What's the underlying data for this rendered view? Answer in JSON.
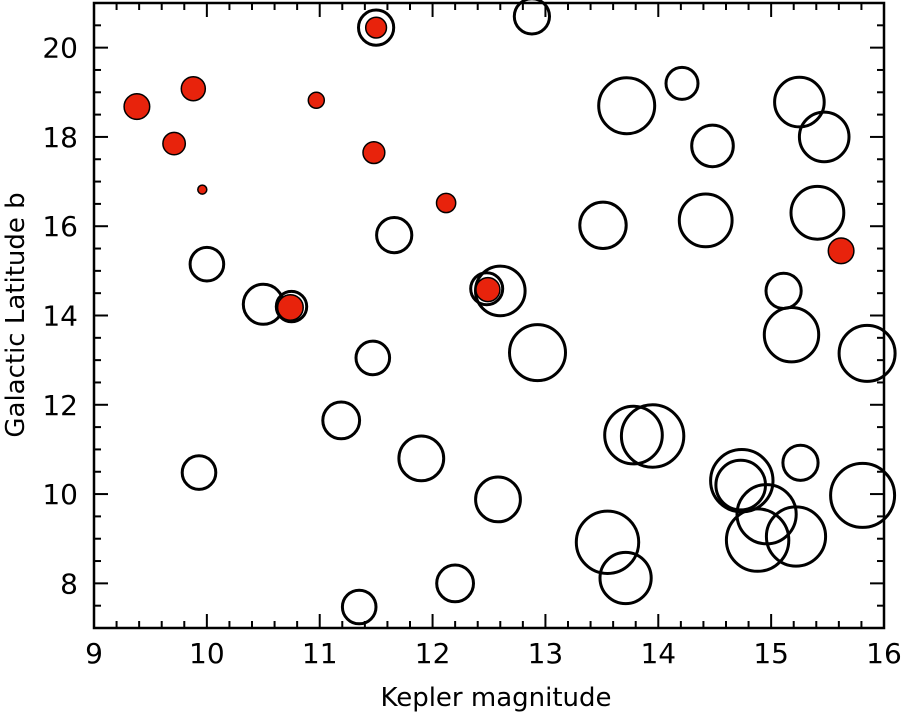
{
  "chart_data": {
    "type": "scatter",
    "xlabel": "Kepler magnitude",
    "ylabel": "Galactic Latitude b",
    "xlim": [
      9,
      16
    ],
    "ylim": [
      7,
      21
    ],
    "xticks": [
      9,
      10,
      11,
      12,
      13,
      14,
      15,
      16
    ],
    "yticks": [
      8,
      10,
      12,
      14,
      16,
      18,
      20
    ],
    "grid": false,
    "colors": {
      "filled": "#e8230c",
      "outline": "#000000"
    },
    "series": [
      {
        "marker": "open-circle",
        "points": [
          {
            "x": 11.5,
            "y": 20.45,
            "size": 1.1
          },
          {
            "x": 12.88,
            "y": 20.7,
            "size": 1.1
          },
          {
            "x": 14.21,
            "y": 19.2,
            "size": 1.0
          },
          {
            "x": 13.72,
            "y": 18.7,
            "size": 1.75
          },
          {
            "x": 15.25,
            "y": 18.78,
            "size": 1.55
          },
          {
            "x": 14.48,
            "y": 17.8,
            "size": 1.3
          },
          {
            "x": 15.47,
            "y": 18.0,
            "size": 1.55
          },
          {
            "x": 13.51,
            "y": 16.02,
            "size": 1.45
          },
          {
            "x": 14.42,
            "y": 16.13,
            "size": 1.65
          },
          {
            "x": 15.41,
            "y": 16.3,
            "size": 1.65
          },
          {
            "x": 11.66,
            "y": 15.8,
            "size": 1.1
          },
          {
            "x": 10.0,
            "y": 15.15,
            "size": 1.05
          },
          {
            "x": 15.11,
            "y": 14.55,
            "size": 1.1
          },
          {
            "x": 12.6,
            "y": 14.55,
            "size": 1.55
          },
          {
            "x": 12.48,
            "y": 14.6,
            "size": 1.0
          },
          {
            "x": 10.5,
            "y": 14.25,
            "size": 1.25
          },
          {
            "x": 10.75,
            "y": 14.2,
            "size": 0.95
          },
          {
            "x": 15.18,
            "y": 13.57,
            "size": 1.7
          },
          {
            "x": 15.85,
            "y": 13.15,
            "size": 1.75
          },
          {
            "x": 12.93,
            "y": 13.17,
            "size": 1.75
          },
          {
            "x": 11.47,
            "y": 13.05,
            "size": 1.05
          },
          {
            "x": 11.19,
            "y": 11.65,
            "size": 1.15
          },
          {
            "x": 13.78,
            "y": 11.32,
            "size": 1.8
          },
          {
            "x": 13.95,
            "y": 11.3,
            "size": 1.95
          },
          {
            "x": 11.9,
            "y": 10.8,
            "size": 1.4
          },
          {
            "x": 15.26,
            "y": 10.7,
            "size": 1.1
          },
          {
            "x": 9.93,
            "y": 10.48,
            "size": 1.05
          },
          {
            "x": 14.74,
            "y": 10.3,
            "size": 1.95
          },
          {
            "x": 14.73,
            "y": 10.2,
            "size": 1.55
          },
          {
            "x": 14.96,
            "y": 9.55,
            "size": 1.85
          },
          {
            "x": 15.81,
            "y": 9.97,
            "size": 2.0
          },
          {
            "x": 12.58,
            "y": 9.88,
            "size": 1.4
          },
          {
            "x": 14.88,
            "y": 8.97,
            "size": 1.95
          },
          {
            "x": 15.22,
            "y": 9.05,
            "size": 1.85
          },
          {
            "x": 13.55,
            "y": 8.92,
            "size": 1.95
          },
          {
            "x": 13.71,
            "y": 8.12,
            "size": 1.6
          },
          {
            "x": 12.2,
            "y": 8.0,
            "size": 1.15
          },
          {
            "x": 11.35,
            "y": 7.47,
            "size": 1.05
          }
        ]
      },
      {
        "marker": "filled-circle",
        "points": [
          {
            "x": 11.5,
            "y": 20.45,
            "size": 0.65
          },
          {
            "x": 9.38,
            "y": 18.68,
            "size": 0.8
          },
          {
            "x": 9.88,
            "y": 19.08,
            "size": 0.75
          },
          {
            "x": 10.97,
            "y": 18.82,
            "size": 0.5
          },
          {
            "x": 9.71,
            "y": 17.85,
            "size": 0.7
          },
          {
            "x": 11.48,
            "y": 17.65,
            "size": 0.68
          },
          {
            "x": 9.96,
            "y": 16.82,
            "size": 0.28
          },
          {
            "x": 12.12,
            "y": 16.52,
            "size": 0.6
          },
          {
            "x": 15.62,
            "y": 15.45,
            "size": 0.8
          },
          {
            "x": 12.49,
            "y": 14.58,
            "size": 0.75
          },
          {
            "x": 10.74,
            "y": 14.18,
            "size": 0.8
          }
        ]
      }
    ]
  }
}
